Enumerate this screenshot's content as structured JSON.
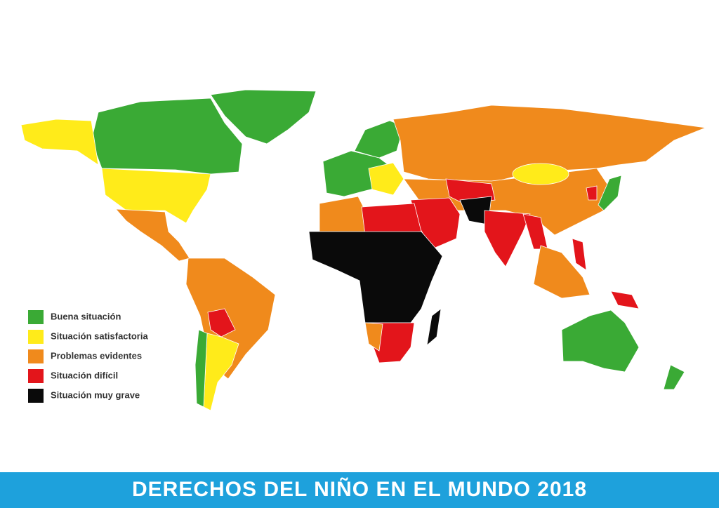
{
  "title": "DERECHOS DEL NIÑO EN EL MUNDO 2018",
  "legend": [
    {
      "label": "Buena situación",
      "color": "#3aaa35"
    },
    {
      "label": "Situación satisfactoria",
      "color": "#ffeb1a"
    },
    {
      "label": "Problemas evidentes",
      "color": "#f08a1c"
    },
    {
      "label": "Situación difícil",
      "color": "#e3151b"
    },
    {
      "label": "Situación muy grave",
      "color": "#0a0a0a"
    }
  ]
}
